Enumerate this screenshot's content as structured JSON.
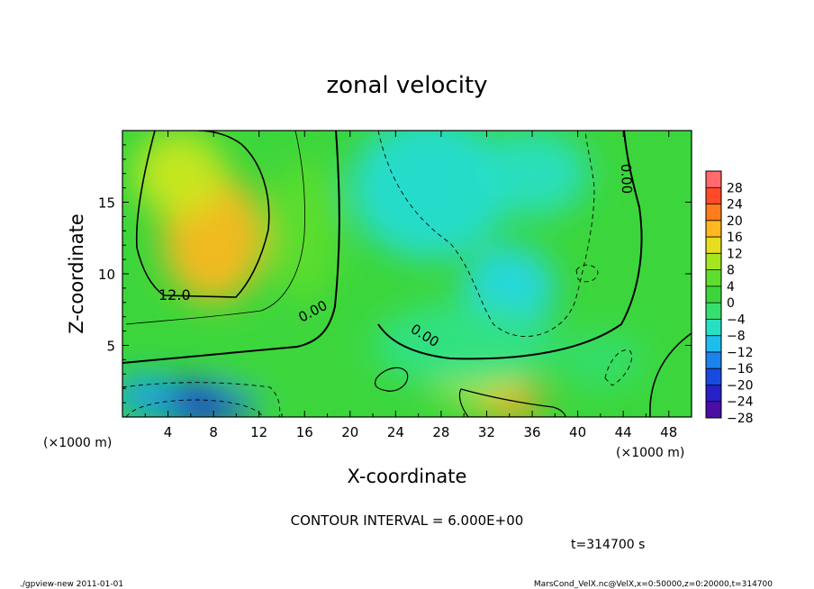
{
  "chart_data": {
    "type": "heatmap",
    "title": "zonal velocity",
    "xlabel": "X-coordinate",
    "ylabel": "Z-coordinate",
    "x_unit": "(×1000 m)",
    "y_unit": "(×1000 m)",
    "xlim": [
      0,
      50
    ],
    "ylim": [
      0,
      20
    ],
    "x_ticks": [
      "4",
      "8",
      "12",
      "16",
      "20",
      "24",
      "28",
      "32",
      "36",
      "40",
      "44",
      "48"
    ],
    "y_ticks": [
      "5",
      "10",
      "15"
    ],
    "colorbar_ticks": [
      "28",
      "24",
      "20",
      "16",
      "12",
      "8",
      "4",
      "0",
      "−4",
      "−8",
      "−12",
      "−16",
      "−20",
      "−24",
      "−28"
    ],
    "color_range": [
      -30,
      30
    ],
    "contour_labels": [
      "12.0",
      "0.00",
      "0.00",
      "0.00"
    ],
    "contour_interval_text": "CONTOUR INTERVAL = 6.000E+00",
    "time_text": "t=314700 s",
    "features": [
      {
        "x": 8,
        "z": 12.5,
        "value": 16,
        "sx": 4.5,
        "sz": 4.5
      },
      {
        "x": 5,
        "z": 17,
        "value": 10,
        "sx": 4,
        "sz": 3
      },
      {
        "x": 7,
        "z": 1,
        "value": -22,
        "sx": 5,
        "sz": 1.5
      },
      {
        "x": 2,
        "z": 1.5,
        "value": -14,
        "sx": 3,
        "sz": 1.5
      },
      {
        "x": 34,
        "z": 1,
        "value": 18,
        "sx": 3,
        "sz": 1.2
      },
      {
        "x": 31,
        "z": 2.5,
        "value": 10,
        "sx": 4,
        "sz": 1.5
      },
      {
        "x": 27,
        "z": 16,
        "value": -9,
        "sx": 7,
        "sz": 5
      },
      {
        "x": 34,
        "z": 9,
        "value": -10,
        "sx": 4,
        "sz": 3
      },
      {
        "x": 36,
        "z": 17,
        "value": -8,
        "sx": 5,
        "sz": 3
      },
      {
        "x": 30,
        "z": 5,
        "value": -5,
        "sx": 8,
        "sz": 3
      },
      {
        "x": 42,
        "z": 4,
        "value": -4,
        "sx": 4,
        "sz": 2
      },
      {
        "x": 16,
        "z": 13,
        "value": 4,
        "sx": 3,
        "sz": 5
      },
      {
        "x": 14,
        "z": 3,
        "value": 2,
        "sx": 6,
        "sz": 2
      }
    ]
  },
  "footer": {
    "left": "./gpview-new  2011-01-01",
    "right": "MarsCond_VelX.nc@VelX,x=0:50000,z=0:20000,t=314700"
  }
}
